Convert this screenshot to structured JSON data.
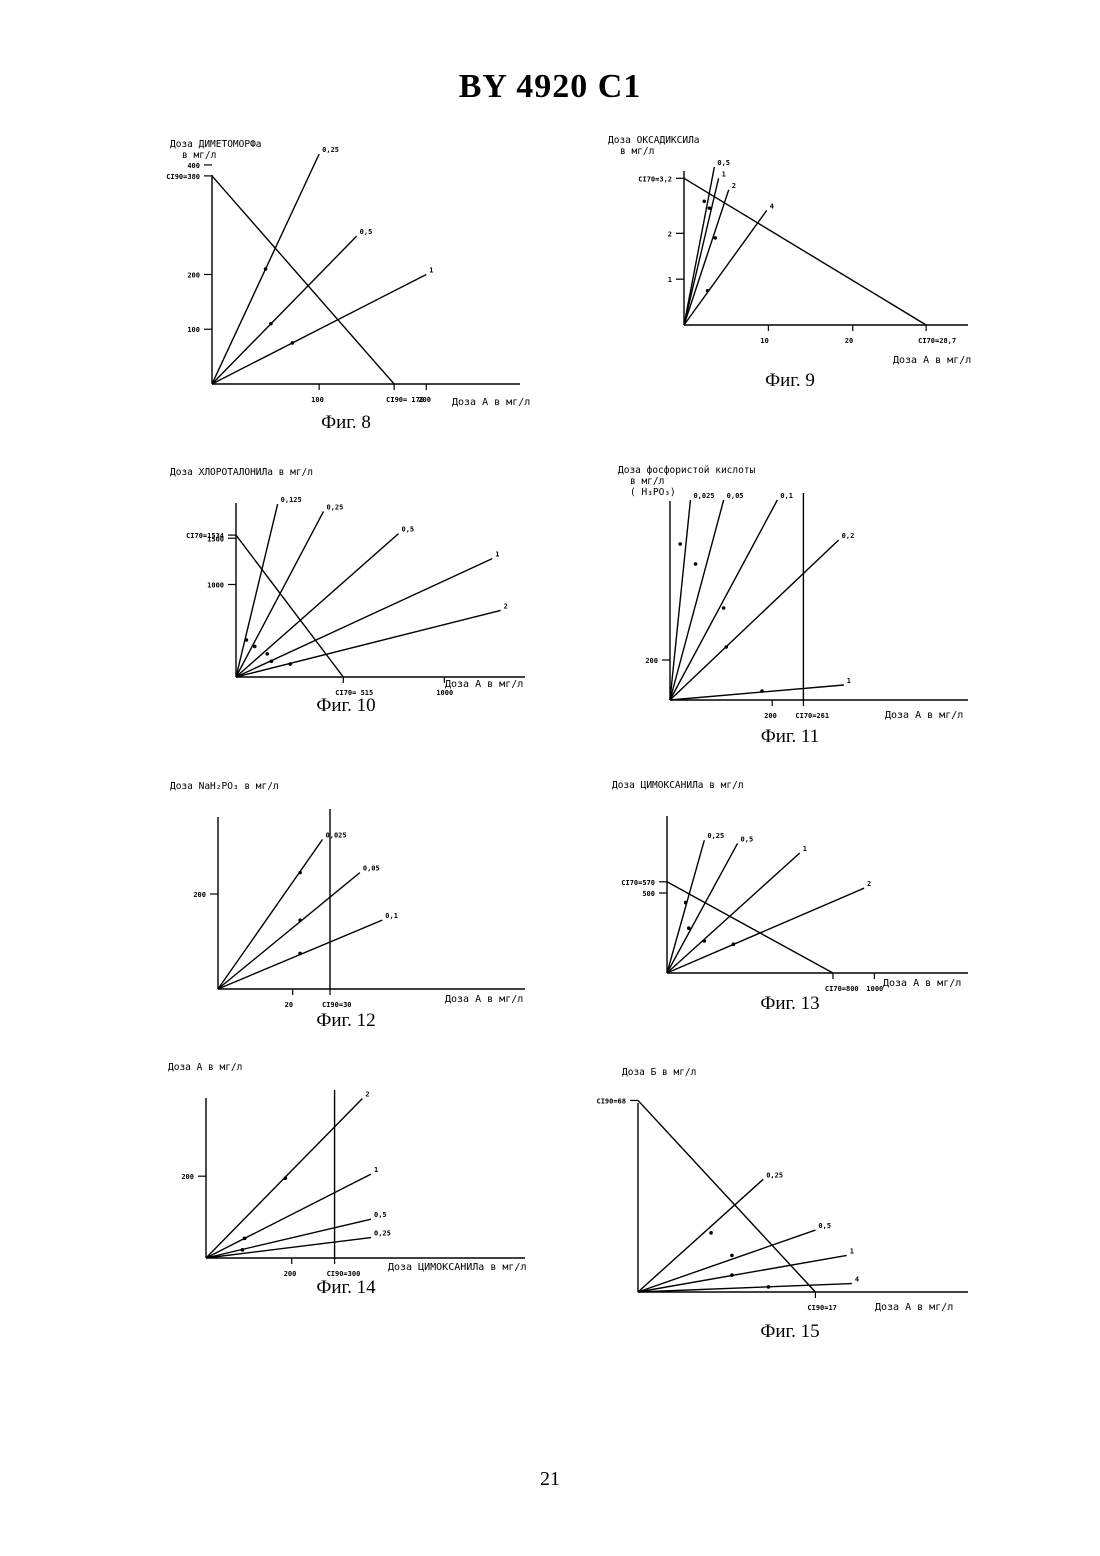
{
  "header": "BY 4920 C1",
  "page_number": "21",
  "chart_data": [
    {
      "id": "fig8",
      "type": "line",
      "caption": "Фиг. 8",
      "ylabel": [
        "Доза ДИМЕТОМОРФа",
        "в мг/л"
      ],
      "xlabel": "Доза А в мг/л",
      "xlim": [
        0,
        280
      ],
      "ylim": [
        0,
        420
      ],
      "x_ticks": [
        {
          "v": 100,
          "label": "100"
        },
        {
          "v": 170,
          "label": "CI90= 170"
        },
        {
          "v": 200,
          "label": "200"
        }
      ],
      "y_ticks": [
        {
          "v": 100,
          "label": "100"
        },
        {
          "v": 200,
          "label": "200"
        },
        {
          "v": 380,
          "label": "CI90=380"
        },
        {
          "v": 400,
          "label": "400"
        }
      ],
      "isobole": {
        "x_int": 170,
        "y_int": 380
      },
      "series": [
        {
          "name": "0,25",
          "end": [
            100,
            420
          ],
          "points": [
            [
              50,
              210
            ]
          ]
        },
        {
          "name": "0,5",
          "end": [
            135,
            270
          ],
          "points": [
            [
              55,
              110
            ]
          ]
        },
        {
          "name": "1",
          "end": [
            200,
            200
          ],
          "points": [
            [
              75,
              75
            ]
          ]
        }
      ]
    },
    {
      "id": "fig9",
      "type": "line",
      "caption": "Фиг. 9",
      "ylabel": [
        "Доза ОКСАДИКСИЛа",
        "в мг/л"
      ],
      "xlabel": "Доза А в мг/л",
      "xlim": [
        0,
        32
      ],
      "ylim": [
        0,
        3.6
      ],
      "x_ticks": [
        {
          "v": 10,
          "label": "10"
        },
        {
          "v": 20,
          "label": "20"
        },
        {
          "v": 28.7,
          "label": "CI70=28,7"
        }
      ],
      "y_ticks": [
        {
          "v": 1,
          "label": "1"
        },
        {
          "v": 2,
          "label": "2"
        },
        {
          "v": 3.2,
          "label": "CI70=3,2"
        }
      ],
      "isobole": {
        "x_int": 28.7,
        "y_int": 3.2
      },
      "series": [
        {
          "name": "0,5",
          "end": [
            3.6,
            3.45
          ],
          "points": [
            [
              2.4,
              2.7
            ]
          ]
        },
        {
          "name": "1",
          "end": [
            4.1,
            3.2
          ],
          "points": [
            [
              3.0,
              2.55
            ]
          ]
        },
        {
          "name": "2",
          "end": [
            5.3,
            2.95
          ],
          "points": [
            [
              3.7,
              1.9
            ]
          ]
        },
        {
          "name": "4",
          "end": [
            9.8,
            2.5
          ],
          "points": [
            [
              2.8,
              0.75
            ]
          ]
        }
      ]
    },
    {
      "id": "fig10",
      "type": "line",
      "caption": "Фиг. 10",
      "ylabel": [
        "Доза ХЛОРОТАЛОНИЛа  в мг/л"
      ],
      "xlabel": "Доза А в мг/л",
      "xlim": [
        0,
        1200
      ],
      "ylim": [
        0,
        2000
      ],
      "x_ticks": [
        {
          "v": 515,
          "label": "CI70= 515"
        },
        {
          "v": 1000,
          "label": "1000"
        }
      ],
      "y_ticks": [
        {
          "v": 1000,
          "label": "1000"
        },
        {
          "v": 1500,
          "label": "1500"
        },
        {
          "v": 1534,
          "label": "CI70=1534"
        }
      ],
      "isobole": {
        "x_int": 515,
        "y_int": 1534
      },
      "series": [
        {
          "name": "0,125",
          "end": [
            200,
            1870
          ],
          "points": [
            [
              50,
              400
            ],
            [
              90,
              330
            ]
          ]
        },
        {
          "name": "0,25",
          "end": [
            420,
            1790
          ],
          "points": [
            [
              150,
              250
            ]
          ]
        },
        {
          "name": "0,5",
          "end": [
            780,
            1550
          ],
          "points": [
            [
              170,
              170
            ]
          ]
        },
        {
          "name": "1",
          "end": [
            1230,
            1280
          ],
          "points": []
        },
        {
          "name": "2",
          "end": [
            1270,
            720
          ],
          "points": [
            [
              260,
              140
            ]
          ]
        }
      ]
    },
    {
      "id": "fig11",
      "type": "line",
      "caption": "Фиг. 11",
      "ylabel": [
        "Доза фосфористой кислоты",
        "в мг/л",
        "( H₃PO₃)"
      ],
      "xlabel": "Доза А в мг/л",
      "xlim": [
        0,
        450
      ],
      "ylim": [
        0,
        1000
      ],
      "x_ticks": [
        {
          "v": 200,
          "label": "200"
        },
        {
          "v": 261,
          "label": "CI70=261"
        }
      ],
      "y_ticks": [
        {
          "v": 200,
          "label": "200"
        }
      ],
      "cutoff_x": 261,
      "series": [
        {
          "name": "0,025",
          "end": [
            40,
            1000
          ],
          "points": [
            [
              20,
              780
            ]
          ]
        },
        {
          "name": "0,05",
          "end": [
            105,
            1000
          ],
          "points": [
            [
              50,
              680
            ]
          ]
        },
        {
          "name": "0,1",
          "end": [
            210,
            1000
          ],
          "points": [
            [
              105,
              460
            ]
          ]
        },
        {
          "name": "0,2",
          "end": [
            330,
            800
          ],
          "points": [
            [
              110,
              265
            ]
          ]
        },
        {
          "name": "1",
          "end": [
            340,
            75
          ],
          "points": [
            [
              180,
              45
            ]
          ]
        }
      ]
    },
    {
      "id": "fig12",
      "type": "line",
      "caption": "Фиг. 12",
      "ylabel": [
        "Доза  NaH₂PO₃  в мг/л"
      ],
      "xlabel": "Доза А в мг/л",
      "xlim": [
        0,
        75
      ],
      "ylim": [
        0,
        400
      ],
      "x_ticks": [
        {
          "v": 20,
          "label": "20"
        },
        {
          "v": 30,
          "label": "CI90=30"
        }
      ],
      "y_ticks": [
        {
          "v": 200,
          "label": "200"
        }
      ],
      "cutoff_x": 30,
      "series": [
        {
          "name": "0,025",
          "end": [
            28,
            315
          ],
          "points": [
            [
              22,
              245
            ]
          ]
        },
        {
          "name": "0,05",
          "end": [
            38,
            245
          ],
          "points": [
            [
              22,
              145
            ]
          ]
        },
        {
          "name": "0,1",
          "end": [
            44,
            145
          ],
          "points": [
            [
              22,
              75
            ]
          ]
        }
      ]
    },
    {
      "id": "fig13",
      "type": "line",
      "caption": "Фиг. 13",
      "ylabel": [
        "Доза ЦИМОКСАНИЛа в мг/л"
      ],
      "xlabel": "Доза А в мг/л",
      "xlim": [
        0,
        1350
      ],
      "ylim": [
        0,
        1000
      ],
      "x_ticks": [
        {
          "v": 800,
          "label": "CI70=800"
        },
        {
          "v": 1000,
          "label": "1000"
        }
      ],
      "y_ticks": [
        {
          "v": 500,
          "label": "500"
        },
        {
          "v": 570,
          "label": "CI70=570"
        }
      ],
      "isobole": {
        "x_int": 800,
        "y_int": 570
      },
      "series": [
        {
          "name": "0,25",
          "end": [
            180,
            830
          ],
          "points": [
            [
              90,
              440
            ],
            [
              105,
              280
            ]
          ]
        },
        {
          "name": "0,5",
          "end": [
            340,
            810
          ],
          "points": []
        },
        {
          "name": "1",
          "end": [
            640,
            750
          ],
          "points": [
            [
              180,
              200
            ]
          ]
        },
        {
          "name": "2",
          "end": [
            950,
            530
          ],
          "points": [
            [
              320,
              180
            ]
          ]
        }
      ]
    },
    {
      "id": "fig14",
      "type": "line",
      "caption": "Фиг. 14",
      "ylabel": [
        "Доза  А в мг/л"
      ],
      "xlabel": "Доза ЦИМОКСАНИЛа в мг/л",
      "xlim": [
        0,
        420
      ],
      "ylim": [
        0,
        440
      ],
      "x_ticks": [
        {
          "v": 200,
          "label": "200"
        },
        {
          "v": 300,
          "label": "CI90=300"
        }
      ],
      "y_ticks": [
        {
          "v": 200,
          "label": "200"
        }
      ],
      "cutoff_x": 300,
      "series": [
        {
          "name": "2",
          "end": [
            365,
            390
          ],
          "points": [
            [
              185,
              195
            ],
            [
              90,
              48
            ]
          ]
        },
        {
          "name": "1",
          "end": [
            385,
            205
          ],
          "points": [
            [
              90,
              48
            ]
          ]
        },
        {
          "name": "0,5",
          "end": [
            385,
            95
          ],
          "points": [
            [
              85,
              20
            ]
          ]
        },
        {
          "name": "0,25",
          "end": [
            385,
            50
          ],
          "points": []
        }
      ]
    },
    {
      "id": "fig15",
      "type": "line",
      "caption": "Фиг. 15",
      "ylabel": [
        "Доза Б    в мг/л"
      ],
      "xlabel": "Доза А в мг/л",
      "xlim": [
        0,
        23
      ],
      "ylim": [
        0,
        71
      ],
      "x_ticks": [
        {
          "v": 17,
          "label": "CI90=17"
        }
      ],
      "y_ticks": [
        {
          "v": 68,
          "label": "CI90=68"
        }
      ],
      "isobole": {
        "x_int": 17,
        "y_int": 68
      },
      "series": [
        {
          "name": "0,25",
          "end": [
            12,
            40
          ],
          "points": [
            [
              7,
              21
            ]
          ]
        },
        {
          "name": "0,5",
          "end": [
            17,
            22
          ],
          "points": [
            [
              9,
              13
            ]
          ]
        },
        {
          "name": "1",
          "end": [
            20,
            13
          ],
          "points": [
            [
              9,
              6
            ]
          ]
        },
        {
          "name": "4",
          "end": [
            20.5,
            3
          ],
          "points": [
            [
              12.5,
              1.8
            ]
          ]
        }
      ]
    }
  ]
}
